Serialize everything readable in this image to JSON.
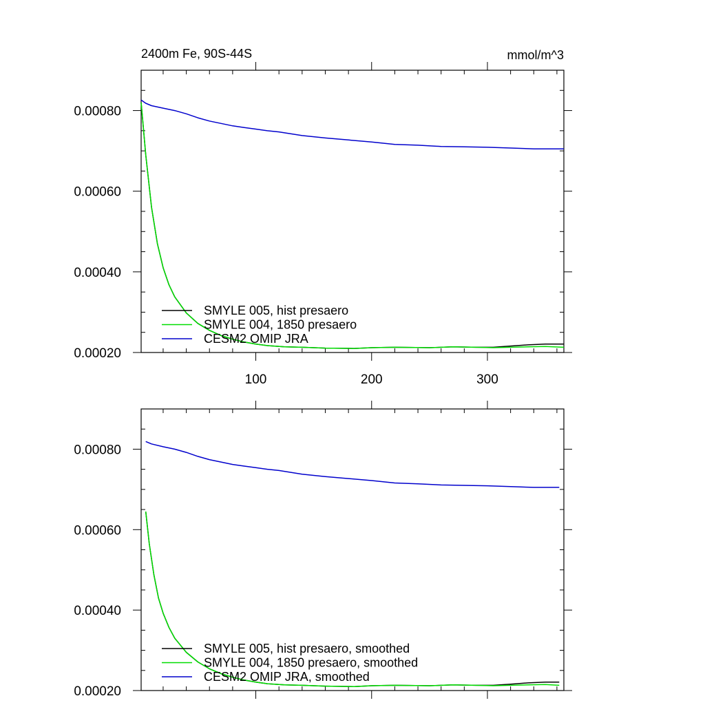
{
  "chart_data": [
    {
      "type": "line",
      "title": "2400m Fe, 90S-44S",
      "units": "mmol/m^3",
      "xlim": [
        1,
        366
      ],
      "ylim": [
        0.0002,
        0.0009
      ],
      "x_ticks": [
        100,
        200,
        300
      ],
      "x_tick_labels": [
        "100",
        "200",
        "300"
      ],
      "y_ticks": [
        0.0002,
        0.0004,
        0.0006,
        0.0008
      ],
      "y_tick_labels": [
        "0.00020",
        "0.00040",
        "0.00060",
        "0.00080"
      ],
      "grid": false,
      "legend_position": "bottom-left",
      "series": [
        {
          "name": "SMYLE 005, hist presaero",
          "color": "#000000",
          "x": [
            1,
            5,
            10,
            15,
            20,
            25,
            30,
            40,
            50,
            60,
            70,
            80,
            90,
            100,
            110,
            125,
            140,
            160,
            185,
            200,
            220,
            250,
            270,
            290,
            305,
            320,
            335,
            350,
            366
          ],
          "y": [
            0.00082,
            0.00069,
            0.00056,
            0.00047,
            0.00041,
            0.000368,
            0.000338,
            0.000298,
            0.000272,
            0.000255,
            0.000242,
            0.000233,
            0.000226,
            0.000221,
            0.000217,
            0.000214,
            0.000213,
            0.000211,
            0.00021,
            0.000212,
            0.000213,
            0.000212,
            0.000214,
            0.000213,
            0.000213,
            0.000216,
            0.000219,
            0.000221,
            0.000221
          ]
        },
        {
          "name": "SMYLE 004, 1850 presaero",
          "color": "#00dd00",
          "x": [
            1,
            5,
            10,
            15,
            20,
            25,
            30,
            40,
            50,
            60,
            70,
            80,
            90,
            100,
            110,
            125,
            140,
            160,
            185,
            200,
            220,
            250,
            270,
            290,
            305,
            320,
            335,
            350,
            366
          ],
          "y": [
            0.00082,
            0.00069,
            0.00056,
            0.00047,
            0.00041,
            0.000368,
            0.000338,
            0.000298,
            0.000272,
            0.000255,
            0.000242,
            0.000233,
            0.000226,
            0.000221,
            0.000217,
            0.000214,
            0.000213,
            0.000211,
            0.00021,
            0.000212,
            0.000213,
            0.000212,
            0.000214,
            0.000213,
            0.000212,
            0.000213,
            0.000214,
            0.000215,
            0.000213
          ]
        },
        {
          "name": "CESM2 OMIP JRA",
          "color": "#0000cc",
          "x": [
            1,
            5,
            10,
            20,
            30,
            40,
            50,
            60,
            70,
            80,
            90,
            100,
            110,
            120,
            140,
            160,
            180,
            200,
            220,
            240,
            260,
            280,
            300,
            320,
            340,
            355,
            366
          ],
          "y": [
            0.000826,
            0.000818,
            0.000812,
            0.000806,
            0.0008,
            0.000792,
            0.000782,
            0.000774,
            0.000768,
            0.000762,
            0.000758,
            0.000754,
            0.00075,
            0.000747,
            0.000738,
            0.000732,
            0.000727,
            0.000722,
            0.000716,
            0.000714,
            0.000711,
            0.00071,
            0.000709,
            0.000707,
            0.000705,
            0.000705,
            0.000705
          ]
        }
      ]
    },
    {
      "type": "line",
      "xlim": [
        1,
        366
      ],
      "ylim": [
        0.0002,
        0.0009
      ],
      "x_ticks": [
        100,
        200,
        300
      ],
      "y_ticks": [
        0.0002,
        0.0004,
        0.0006,
        0.0008
      ],
      "y_tick_labels": [
        "0.00020",
        "0.00040",
        "0.00060",
        "0.00080"
      ],
      "grid": false,
      "legend_position": "bottom-left",
      "series": [
        {
          "name": "SMYLE 005, hist presaero, smoothed",
          "color": "#000000",
          "x": [
            5,
            8,
            12,
            16,
            20,
            25,
            30,
            40,
            50,
            60,
            70,
            80,
            90,
            100,
            110,
            125,
            140,
            160,
            185,
            200,
            220,
            250,
            270,
            290,
            305,
            320,
            335,
            350,
            362
          ],
          "y": [
            0.000645,
            0.000565,
            0.000488,
            0.00043,
            0.000392,
            0.000357,
            0.00033,
            0.000295,
            0.000271,
            0.000254,
            0.000242,
            0.000233,
            0.000226,
            0.000221,
            0.000217,
            0.000214,
            0.000213,
            0.000211,
            0.00021,
            0.000212,
            0.000213,
            0.000212,
            0.000214,
            0.000213,
            0.000213,
            0.000216,
            0.000219,
            0.000221,
            0.000221
          ]
        },
        {
          "name": "SMYLE 004, 1850 presaero, smoothed",
          "color": "#00dd00",
          "x": [
            5,
            8,
            12,
            16,
            20,
            25,
            30,
            40,
            50,
            60,
            70,
            80,
            90,
            100,
            110,
            125,
            140,
            160,
            185,
            200,
            220,
            250,
            270,
            290,
            305,
            320,
            335,
            350,
            362
          ],
          "y": [
            0.000645,
            0.000565,
            0.000488,
            0.00043,
            0.000392,
            0.000357,
            0.00033,
            0.000295,
            0.000271,
            0.000254,
            0.000242,
            0.000233,
            0.000226,
            0.000221,
            0.000217,
            0.000214,
            0.000213,
            0.000211,
            0.00021,
            0.000212,
            0.000213,
            0.000212,
            0.000214,
            0.000213,
            0.000212,
            0.000213,
            0.000214,
            0.000215,
            0.000213
          ]
        },
        {
          "name": "CESM2 OMIP JRA, smoothed",
          "color": "#0000cc",
          "x": [
            5,
            10,
            20,
            30,
            40,
            50,
            60,
            70,
            80,
            90,
            100,
            110,
            120,
            140,
            160,
            180,
            200,
            220,
            240,
            260,
            280,
            300,
            320,
            340,
            355,
            362
          ],
          "y": [
            0.000819,
            0.000813,
            0.000806,
            0.0008,
            0.000792,
            0.000782,
            0.000774,
            0.000768,
            0.000762,
            0.000758,
            0.000754,
            0.00075,
            0.000747,
            0.000738,
            0.000732,
            0.000727,
            0.000722,
            0.000716,
            0.000714,
            0.000711,
            0.00071,
            0.000709,
            0.000707,
            0.000705,
            0.000705,
            0.000705
          ]
        }
      ]
    }
  ]
}
